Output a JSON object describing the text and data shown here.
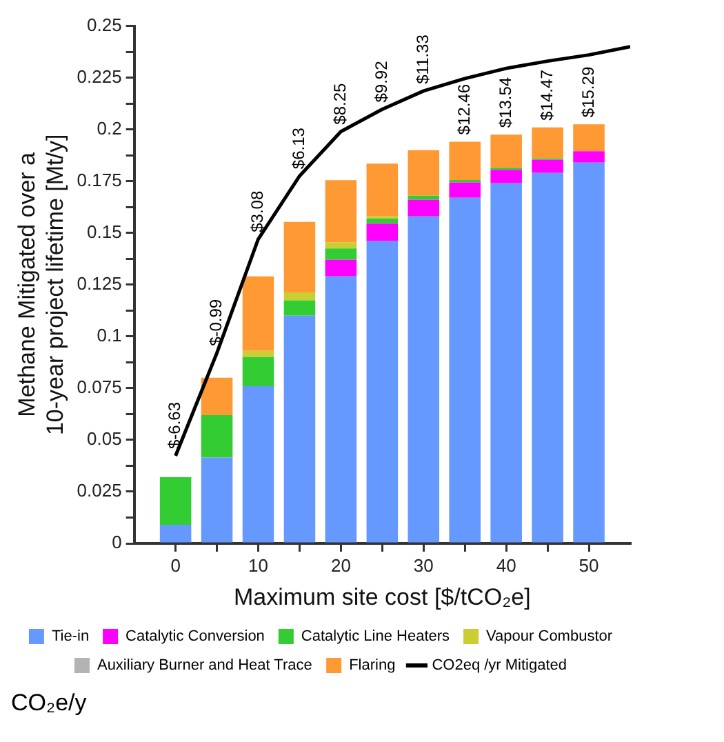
{
  "chart_data": {
    "type": "bar",
    "stacked": true,
    "xlabel": "Maximum site cost [$/tCO₂e]",
    "ylabel": "Methane Mitigated over a\n10-year project lifetime [Mt/y]",
    "x": [
      0,
      5,
      10,
      15,
      20,
      25,
      30,
      35,
      40,
      45,
      50
    ],
    "series": [
      {
        "name": "Tie-in",
        "color": "#6699ff",
        "values": [
          0.009,
          0.0415,
          0.076,
          0.11,
          0.129,
          0.146,
          0.158,
          0.167,
          0.174,
          0.179,
          0.184
        ]
      },
      {
        "name": "Catalytic Conversion",
        "color": "#ff00ff",
        "values": [
          0,
          0,
          0,
          0,
          0.008,
          0.0085,
          0.008,
          0.0074,
          0.0065,
          0.0063,
          0.0055
        ]
      },
      {
        "name": "Catalytic Line Heaters",
        "color": "#33cc33",
        "values": [
          0.023,
          0.0205,
          0.014,
          0.0074,
          0.0055,
          0.0025,
          0.002,
          0.0012,
          0.001,
          0.0007,
          0
        ]
      },
      {
        "name": "Vapour Combustor",
        "color": "#cccc33",
        "values": [
          0,
          0,
          0.003,
          0.0039,
          0.003,
          0.001,
          0,
          0,
          0,
          0,
          0
        ]
      },
      {
        "name": "Auxiliary Burner and Heat Trace",
        "color": "#b3b3b3",
        "values": [
          0,
          0,
          0,
          0,
          0,
          0,
          0,
          0,
          0,
          0,
          0
        ]
      },
      {
        "name": "Flaring",
        "color": "#ff9933",
        "values": [
          0,
          0.018,
          0.036,
          0.034,
          0.03,
          0.0255,
          0.022,
          0.0185,
          0.016,
          0.015,
          0.013
        ]
      },
      {
        "name": "CO2eq /yr Mitigated",
        "type": "line",
        "color": "#000000",
        "x": [
          0,
          5,
          10,
          15,
          20,
          25,
          30,
          35,
          40,
          45,
          50,
          55
        ],
        "values": [
          0.0423,
          0.092,
          0.147,
          0.1775,
          0.199,
          0.2097,
          0.2186,
          0.2246,
          0.2295,
          0.233,
          0.236,
          0.24
        ]
      }
    ],
    "xlim": [
      -5,
      55
    ],
    "xticks": [
      0,
      {
        "value": 5,
        "label": null
      },
      10,
      {
        "value": 15,
        "label": null
      },
      20,
      {
        "value": 25,
        "label": null
      },
      30,
      {
        "value": 35,
        "label": null
      },
      40,
      {
        "value": 45,
        "label": null
      },
      50
    ],
    "ylim": [
      0,
      0.25
    ],
    "yticks": [
      0,
      {
        "value": 0.0125,
        "label": null
      },
      0.025,
      {
        "value": 0.0375,
        "label": null
      },
      0.05,
      {
        "value": 0.0625,
        "label": null
      },
      0.075,
      {
        "value": 0.0875,
        "label": null
      },
      0.1,
      {
        "value": 0.1125,
        "label": null
      },
      0.125,
      {
        "value": 0.1375,
        "label": null
      },
      0.15,
      {
        "value": 0.1625,
        "label": null
      },
      0.175,
      {
        "value": 0.1875,
        "label": null
      },
      0.2,
      {
        "value": 0.2125,
        "label": null
      },
      0.225,
      {
        "value": 0.2375,
        "label": null
      },
      0.25
    ],
    "grid": false,
    "marker": "none",
    "line_style": "solid",
    "legend": "bottom",
    "annotations": [
      {
        "text": "$-6.63",
        "x": 0,
        "y": 0.0423
      },
      {
        "text": "$-0.99",
        "x": 5,
        "y": 0.092
      },
      {
        "text": "$3.08",
        "x": 10,
        "y": 0.147
      },
      {
        "text": "$6.13",
        "x": 15,
        "y": 0.1775
      },
      {
        "text": "$8.25",
        "x": 20,
        "y": 0.199
      },
      {
        "text": "$9.92",
        "x": 25,
        "y": 0.2097
      },
      {
        "text": "$11.33",
        "x": 30,
        "y": 0.2186
      },
      {
        "text": "$12.46",
        "x": 35,
        "y": 0.1941
      },
      {
        "text": "$13.54",
        "x": 40,
        "y": 0.1975
      },
      {
        "text": "$14.47",
        "x": 45,
        "y": 0.201
      },
      {
        "text": "$15.29",
        "x": 50,
        "y": 0.2025
      },
      "CO₂e/y"
    ]
  }
}
